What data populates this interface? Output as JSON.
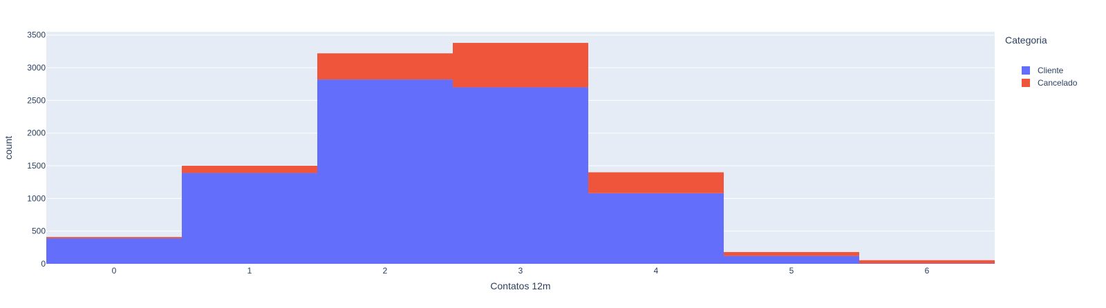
{
  "chart_data": {
    "type": "bar",
    "barmode": "stack",
    "title": "",
    "xlabel": "Contatos 12m",
    "ylabel": "count",
    "categories": [
      0,
      1,
      2,
      3,
      4,
      5,
      6
    ],
    "x_tick_labels": [
      "0",
      "1",
      "2",
      "3",
      "4",
      "5",
      "6"
    ],
    "y_ticks": [
      0,
      500,
      1000,
      1500,
      2000,
      2500,
      3000,
      3500
    ],
    "y_tick_labels": [
      "0",
      "500",
      "1000",
      "1500",
      "2000",
      "2500",
      "3000",
      "3500"
    ],
    "ylim": [
      0,
      3550
    ],
    "grid": true,
    "legend": {
      "title": "Categoria",
      "placement": "top-right"
    },
    "series": [
      {
        "name": "Cliente",
        "color": "#636efa",
        "values": [
          390,
          1390,
          2820,
          2700,
          1080,
          120,
          5
        ]
      },
      {
        "name": "Cancelado",
        "color": "#ef553b",
        "values": [
          20,
          110,
          400,
          680,
          320,
          60,
          50
        ]
      }
    ]
  }
}
